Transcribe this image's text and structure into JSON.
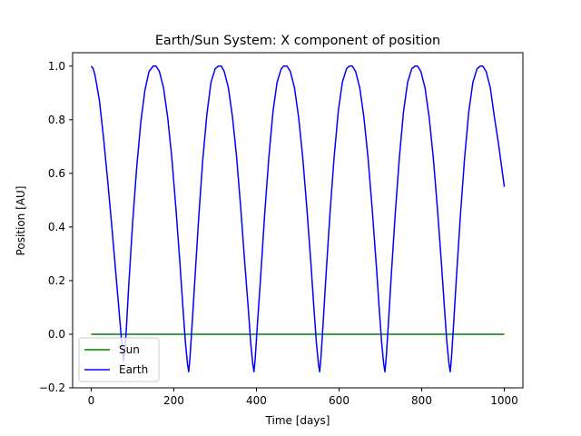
{
  "chart_data": {
    "type": "line",
    "title": "Earth/Sun System: X component of position",
    "xlabel": "Time [days]",
    "ylabel": "Position [AU]",
    "xlim": [
      -45,
      1045
    ],
    "ylim": [
      -0.2,
      1.05
    ],
    "xticks": [
      0,
      200,
      400,
      600,
      800,
      1000
    ],
    "yticks": [
      -0.2,
      0.0,
      0.2,
      0.4,
      0.6,
      0.8,
      1.0
    ],
    "xtick_labels": [
      "0",
      "200",
      "400",
      "600",
      "800",
      "1000"
    ],
    "ytick_labels": [
      "−0.2",
      "0.0",
      "0.2",
      "0.4",
      "0.6",
      "0.8",
      "1.0"
    ],
    "grid": false,
    "legend_position": "lower-left",
    "series": [
      {
        "name": "Sun",
        "color": "#008000",
        "x": [
          0,
          1000
        ],
        "y": [
          0.0,
          0.0
        ]
      },
      {
        "name": "Earth",
        "color": "#0000ff",
        "x": [
          0,
          5,
          10,
          20,
          30,
          40,
          50,
          60,
          65,
          70,
          75,
          78,
          82,
          85,
          90,
          100,
          110,
          120,
          130,
          140,
          150,
          157,
          165,
          175,
          185,
          195,
          205,
          215,
          222,
          228,
          233,
          236,
          239,
          244,
          250,
          260,
          270,
          280,
          290,
          300,
          308,
          315,
          322,
          332,
          342,
          352,
          362,
          372,
          380,
          386,
          391,
          394,
          397,
          402,
          410,
          420,
          430,
          440,
          450,
          460,
          466,
          474,
          482,
          492,
          502,
          512,
          522,
          532,
          539,
          545,
          550,
          553,
          556,
          561,
          568,
          578,
          588,
          598,
          608,
          618,
          625,
          632,
          640,
          650,
          660,
          670,
          680,
          690,
          697,
          703,
          708,
          711,
          714,
          719,
          726,
          736,
          746,
          756,
          766,
          776,
          784,
          790,
          798,
          808,
          818,
          828,
          838,
          848,
          855,
          861,
          866,
          869,
          872,
          877,
          884,
          894,
          904,
          914,
          924,
          934,
          942,
          948,
          956,
          966,
          976,
          986,
          1000
        ],
        "y": [
          1.0,
          0.99,
          0.96,
          0.87,
          0.73,
          0.57,
          0.4,
          0.22,
          0.13,
          0.04,
          -0.05,
          -0.1,
          -0.05,
          0.02,
          0.16,
          0.41,
          0.62,
          0.79,
          0.91,
          0.98,
          1.0,
          1.0,
          0.98,
          0.92,
          0.81,
          0.66,
          0.47,
          0.26,
          0.1,
          -0.03,
          -0.11,
          -0.14,
          -0.09,
          0.03,
          0.18,
          0.43,
          0.65,
          0.82,
          0.94,
          0.99,
          1.0,
          1.0,
          0.98,
          0.92,
          0.81,
          0.66,
          0.47,
          0.26,
          0.1,
          -0.03,
          -0.11,
          -0.14,
          -0.09,
          0.03,
          0.21,
          0.45,
          0.66,
          0.83,
          0.94,
          0.99,
          1.0,
          1.0,
          0.98,
          0.92,
          0.81,
          0.66,
          0.47,
          0.26,
          0.1,
          -0.03,
          -0.11,
          -0.14,
          -0.09,
          0.03,
          0.21,
          0.45,
          0.66,
          0.83,
          0.94,
          0.99,
          1.0,
          1.0,
          0.98,
          0.92,
          0.81,
          0.66,
          0.47,
          0.26,
          0.1,
          -0.03,
          -0.11,
          -0.14,
          -0.09,
          0.03,
          0.21,
          0.45,
          0.66,
          0.83,
          0.94,
          0.99,
          1.0,
          1.0,
          0.98,
          0.92,
          0.81,
          0.66,
          0.47,
          0.26,
          0.1,
          -0.03,
          -0.11,
          -0.14,
          -0.09,
          0.03,
          0.21,
          0.45,
          0.66,
          0.83,
          0.94,
          0.99,
          1.0,
          1.0,
          0.98,
          0.92,
          0.81,
          0.71,
          0.55
        ]
      }
    ]
  }
}
